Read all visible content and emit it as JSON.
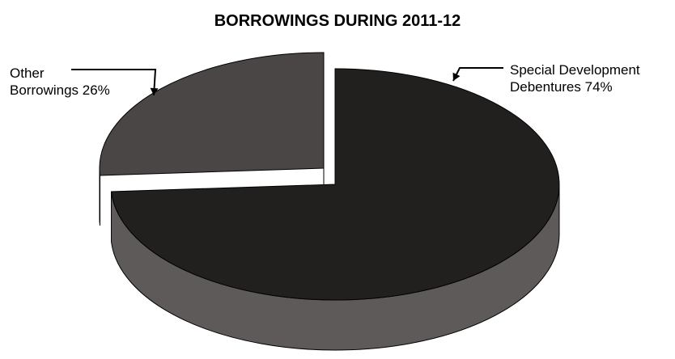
{
  "chart_data": {
    "type": "pie",
    "title": "BORROWINGS DURING 2011-12",
    "slices": [
      {
        "name": "Special Development Debentures",
        "label_lines": [
          "Special Development",
          "Debentures   74%"
        ],
        "value": 74,
        "color": "#221f1f"
      },
      {
        "name": "Other Borrowings",
        "label_lines": [
          "Other",
          "Borrowings 26%"
        ],
        "value": 26,
        "color": "#4a4645"
      }
    ],
    "style": "3d-exploded",
    "legend": "none"
  },
  "colors": {
    "background": "#ffffff",
    "side_dark": "#5d5a59",
    "side_light": "#8d8a89",
    "outline": "#000000"
  }
}
